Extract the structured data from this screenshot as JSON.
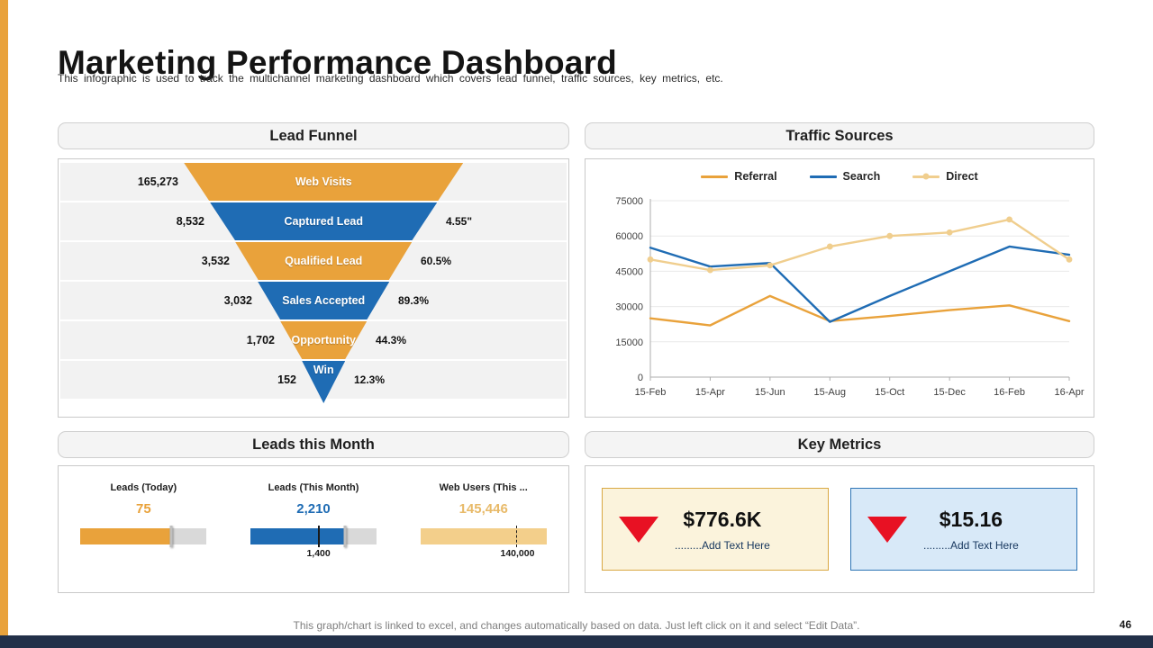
{
  "page": {
    "title": "Marketing Performance Dashboard",
    "subtitle": "This infographic is used to track the multichannel marketing dashboard which covers lead funnel, traffic sources, key metrics, etc.",
    "footer_note": "This graph/chart is linked to excel, and changes automatically based on data. Just left click on it and select “Edit Data”.",
    "page_number": "46"
  },
  "colors": {
    "gold": "#E9A23B",
    "gold_light": "#F3CF8B",
    "blue": "#1F6CB4",
    "red": "#E81123",
    "navy_bar": "#223049",
    "note_blue": "#17375E"
  },
  "panels": {
    "lead_funnel": {
      "title": "Lead Funnel"
    },
    "traffic_sources": {
      "title": "Traffic Sources"
    },
    "leads_month": {
      "title": "Leads this Month"
    },
    "key_metrics": {
      "title": "Key Metrics"
    }
  },
  "chart_data": [
    {
      "type": "funnel",
      "title": "Lead Funnel",
      "stages": [
        {
          "label": "Web Visits",
          "value": "165,273",
          "rate": "",
          "color": "#E9A23B"
        },
        {
          "label": "Captured Lead",
          "value": "8,532",
          "rate": "4.55\"",
          "color": "#1F6CB4"
        },
        {
          "label": "Qualified Lead",
          "value": "3,532",
          "rate": "60.5%",
          "color": "#E9A23B"
        },
        {
          "label": "Sales Accepted",
          "value": "3,032",
          "rate": "89.3%",
          "color": "#1F6CB4"
        },
        {
          "label": "Opportunity",
          "value": "1,702",
          "rate": "44.3%",
          "color": "#E9A23B"
        },
        {
          "label": "Win",
          "value": "152",
          "rate": "12.3%",
          "color": "#1F6CB4"
        }
      ]
    },
    {
      "type": "line",
      "title": "Traffic Sources",
      "x": [
        "15-Feb",
        "15-Apr",
        "15-Jun",
        "15-Aug",
        "15-Oct",
        "15-Dec",
        "16-Feb",
        "16-Apr"
      ],
      "series": [
        {
          "name": "Referral",
          "color": "#E9A23B",
          "markers": false,
          "values": [
            25000,
            22000,
            34500,
            23800,
            26000,
            28500,
            30500,
            23800
          ]
        },
        {
          "name": "Search",
          "color": "#1F6CB4",
          "markers": false,
          "values": [
            55000,
            47000,
            48500,
            23500,
            34500,
            45000,
            55500,
            52000
          ]
        },
        {
          "name": "Direct",
          "color": "#F0CE8E",
          "markers": true,
          "values": [
            50000,
            45500,
            47500,
            55500,
            60000,
            61500,
            67000,
            50000
          ]
        }
      ],
      "ylim": [
        0,
        75000
      ],
      "yticks": [
        0,
        15000,
        30000,
        45000,
        60000,
        75000
      ],
      "grid": true,
      "legend_position": "top"
    },
    {
      "type": "bullet-group",
      "title": "Leads this Month",
      "items": [
        {
          "label": "Leads (Today)",
          "value": "75",
          "color": "#E9A23B",
          "value_color": "#E9A23B",
          "fill_pct": 72,
          "thumb_pct": 72,
          "target_pct": null,
          "target_label": "",
          "dashed": false
        },
        {
          "label": "Leads (This Month)",
          "value": "2,210",
          "color": "#1F6CB4",
          "value_color": "#1F6CB4",
          "fill_pct": 75,
          "thumb_pct": 75,
          "target_pct": 54,
          "target_label": "1,400",
          "dashed": false
        },
        {
          "label": "Web Users (This ...",
          "value": "145,446",
          "color": "#F3CF8B",
          "value_color": "#E8BA69",
          "fill_pct": 100,
          "thumb_pct": null,
          "target_pct": 77,
          "target_label": "140,000",
          "dashed": true
        }
      ]
    },
    {
      "type": "kpi",
      "title": "Key Metrics",
      "cards": [
        {
          "value": "$776.6K",
          "note": ".........Add Text Here",
          "bg": "#FBF3DC",
          "border": "#D9A843"
        },
        {
          "value": "$15.16",
          "note": ".........Add Text Here",
          "bg": "#D8E9F8",
          "border": "#2E75B6"
        }
      ]
    }
  ]
}
